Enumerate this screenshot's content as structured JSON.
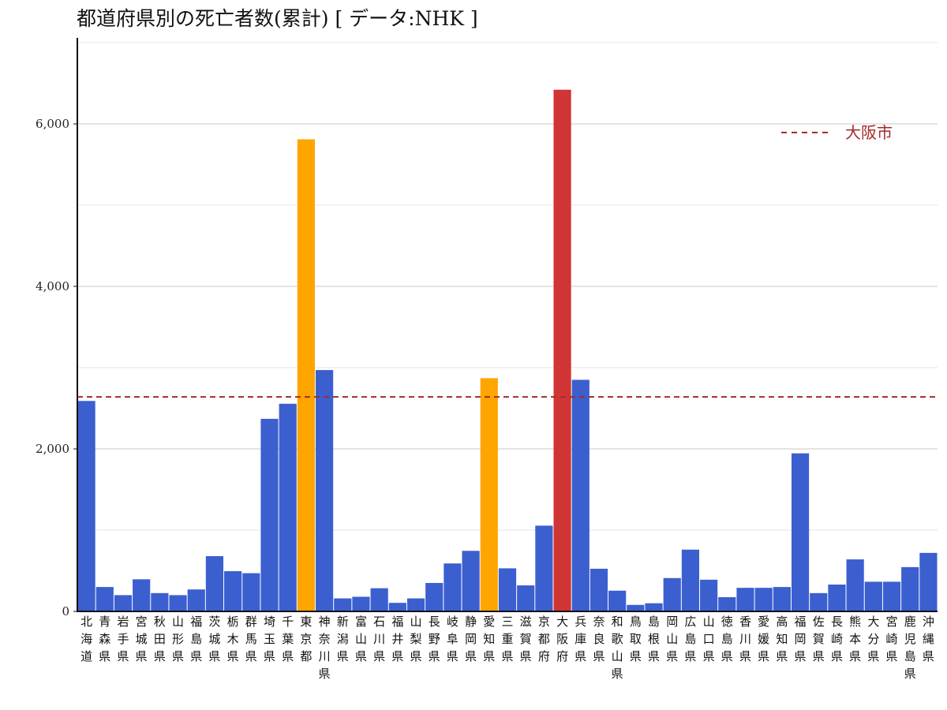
{
  "chart_data": {
    "type": "bar",
    "title": "都道府県別の死亡者数(累計) [ データ:NHK ]",
    "xlabel": "",
    "ylabel": "",
    "ylim": [
      0,
      7000
    ],
    "yticks": [
      0,
      2000,
      4000,
      6000
    ],
    "ytick_labels": [
      "0",
      "2,000",
      "4,000",
      "6,000"
    ],
    "grid": true,
    "legend_position": "top-right",
    "colors": {
      "default": "#3b5fcf",
      "highlight": "#ffa500",
      "osaka": "#d13434",
      "reference_line": "#a52a2a"
    },
    "categories": [
      "北海道",
      "青森県",
      "岩手県",
      "宮城県",
      "秋田県",
      "山形県",
      "福島県",
      "茨城県",
      "栃木県",
      "群馬県",
      "埼玉県",
      "千葉県",
      "東京都",
      "神奈川県",
      "新潟県",
      "富山県",
      "石川県",
      "福井県",
      "山梨県",
      "長野県",
      "岐阜県",
      "静岡県",
      "愛知県",
      "三重県",
      "滋賀県",
      "京都府",
      "大阪府",
      "兵庫県",
      "奈良県",
      "和歌山県",
      "鳥取県",
      "島根県",
      "岡山県",
      "広島県",
      "山口県",
      "徳島県",
      "香川県",
      "愛媛県",
      "高知県",
      "福岡県",
      "佐賀県",
      "長崎県",
      "熊本県",
      "大分県",
      "宮崎県",
      "鹿児島県",
      "沖縄県"
    ],
    "values": [
      2590,
      300,
      200,
      395,
      225,
      200,
      270,
      680,
      495,
      470,
      2370,
      2555,
      5810,
      2970,
      160,
      180,
      285,
      105,
      160,
      350,
      590,
      745,
      2870,
      530,
      320,
      1055,
      6420,
      2850,
      525,
      255,
      80,
      100,
      410,
      760,
      390,
      175,
      290,
      290,
      300,
      1945,
      225,
      330,
      640,
      365,
      365,
      545,
      720
    ],
    "bar_colors": [
      "default",
      "default",
      "default",
      "default",
      "default",
      "default",
      "default",
      "default",
      "default",
      "default",
      "default",
      "default",
      "highlight",
      "default",
      "default",
      "default",
      "default",
      "default",
      "default",
      "default",
      "default",
      "default",
      "highlight",
      "default",
      "default",
      "default",
      "osaka",
      "default",
      "default",
      "default",
      "default",
      "default",
      "default",
      "default",
      "default",
      "default",
      "default",
      "default",
      "default",
      "default",
      "default",
      "default",
      "default",
      "default",
      "default",
      "default",
      "default"
    ],
    "reference_line": {
      "name": "大阪市",
      "value": 2640,
      "style": "dashed"
    }
  }
}
